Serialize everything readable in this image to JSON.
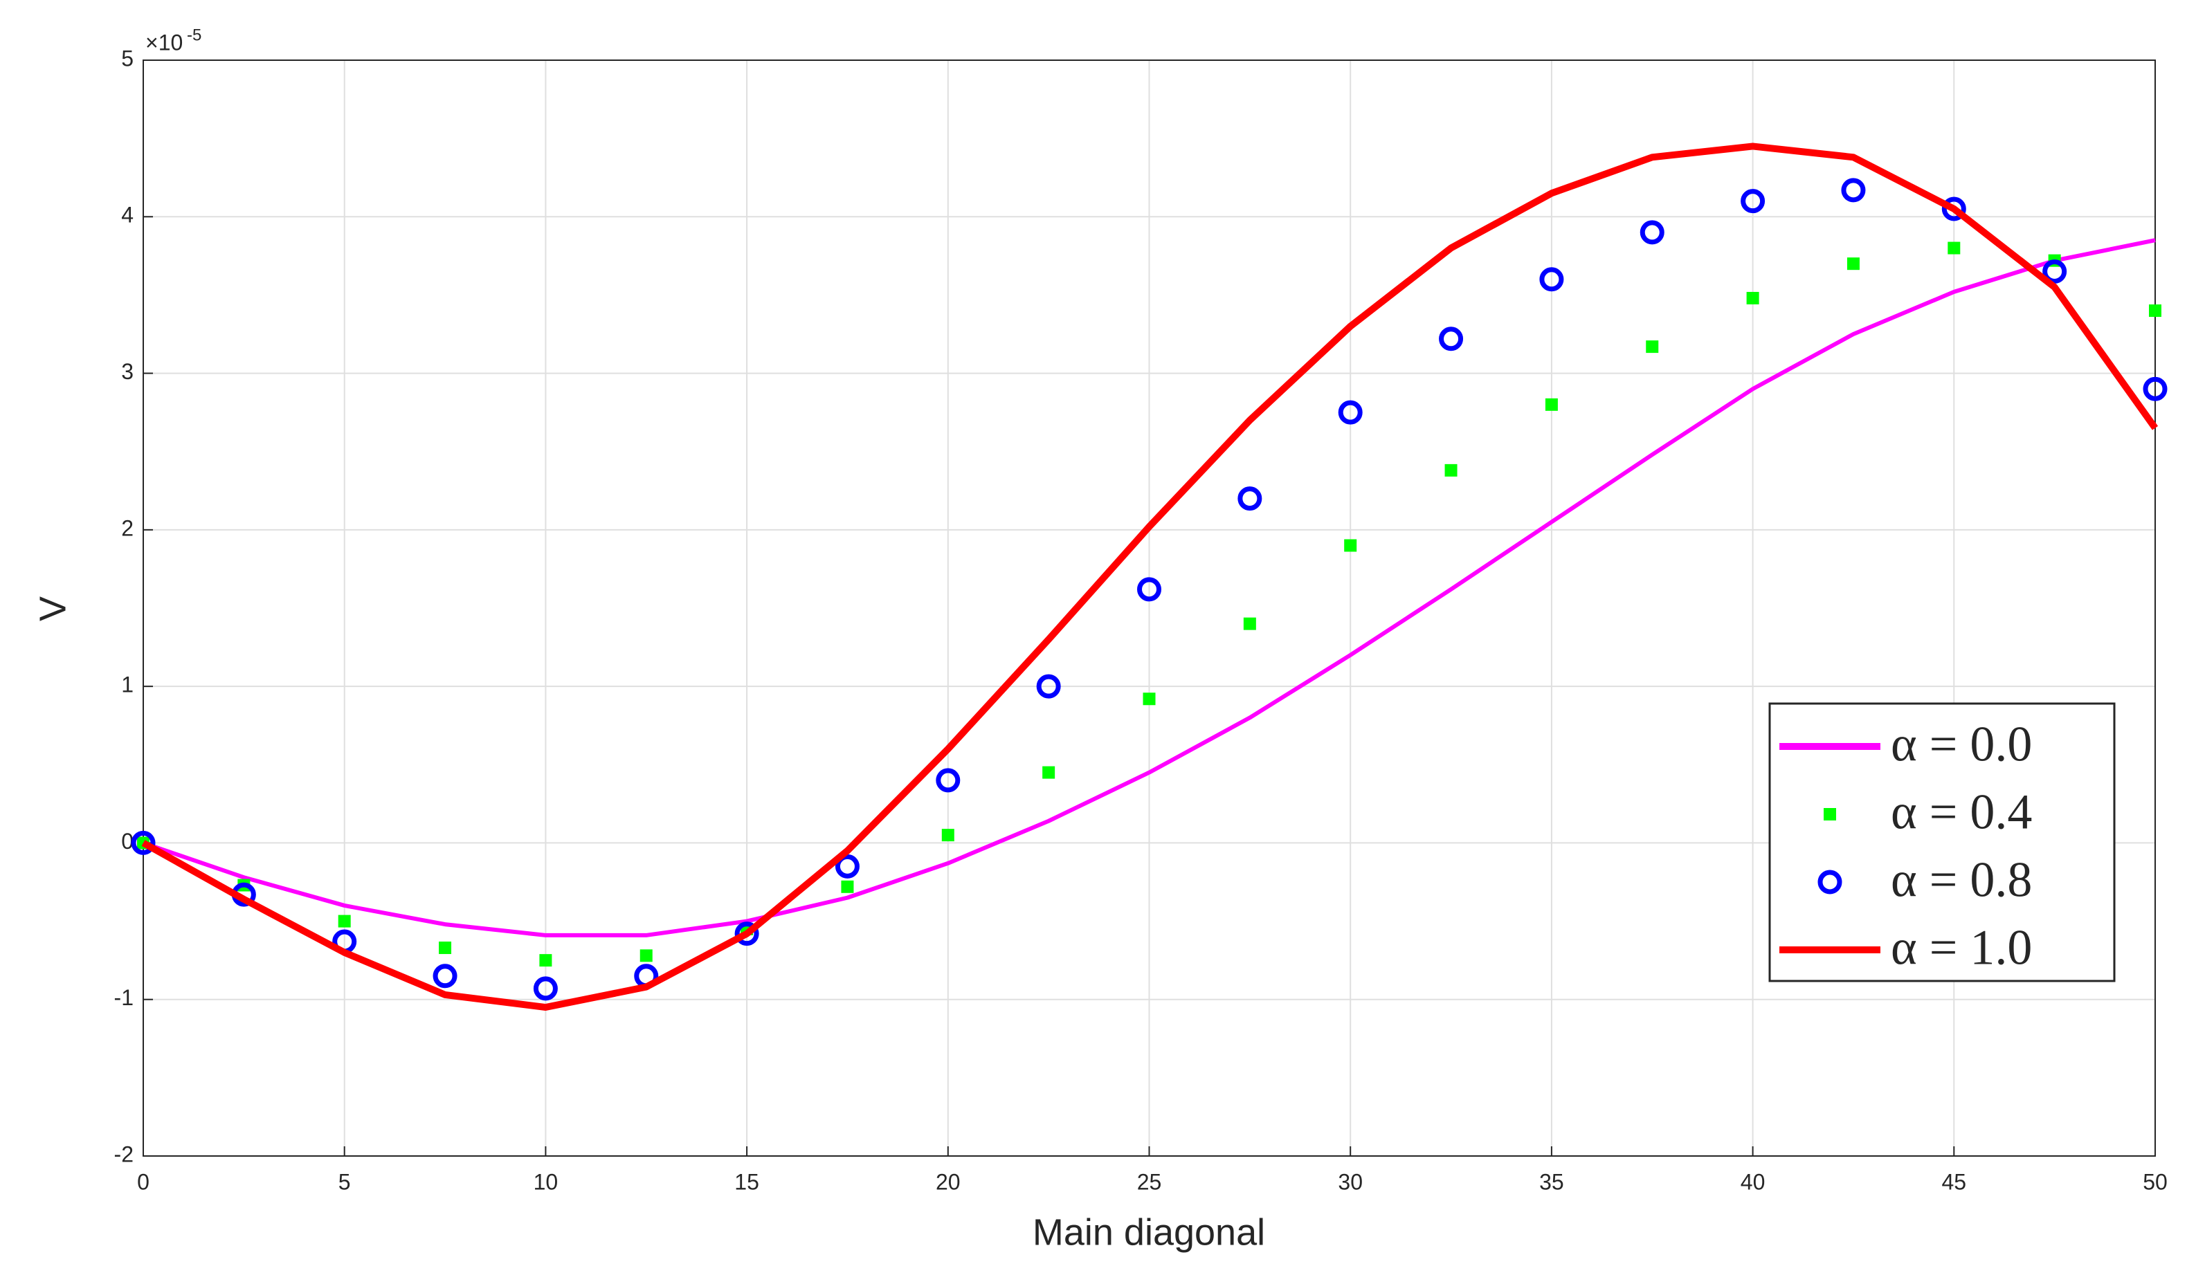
{
  "chart_data": {
    "type": "line",
    "xlabel": "Main diagonal",
    "ylabel": "V",
    "y_multiplier": {
      "base": "×10",
      "exponent": "-5"
    },
    "x": [
      0,
      2.5,
      5,
      7.5,
      10,
      12.5,
      15,
      17.5,
      20,
      22.5,
      25,
      27.5,
      30,
      32.5,
      35,
      37.5,
      40,
      42.5,
      45,
      47.5,
      50
    ],
    "series": [
      {
        "name": "α = 0.0",
        "color": "#ff00ff",
        "marker": "none",
        "values": [
          0,
          -0.22,
          -0.4,
          -0.52,
          -0.59,
          -0.59,
          -0.5,
          -0.35,
          -0.13,
          0.14,
          0.45,
          0.8,
          1.2,
          1.62,
          2.05,
          2.48,
          2.9,
          3.25,
          3.52,
          3.72,
          3.85
        ]
      },
      {
        "name": "α = 0.4",
        "color": "#00ff00",
        "marker": "square",
        "values": [
          0,
          -0.27,
          -0.5,
          -0.67,
          -0.75,
          -0.72,
          -0.55,
          -0.28,
          0.05,
          0.45,
          0.92,
          1.4,
          1.9,
          2.38,
          2.8,
          3.17,
          3.48,
          3.7,
          3.8,
          3.72,
          3.4
        ]
      },
      {
        "name": "α = 0.8",
        "color": "#0000ff",
        "marker": "circle",
        "values": [
          0,
          -0.33,
          -0.63,
          -0.85,
          -0.93,
          -0.85,
          -0.58,
          -0.15,
          0.4,
          1.0,
          1.62,
          2.2,
          2.75,
          3.22,
          3.6,
          3.9,
          4.1,
          4.17,
          4.05,
          3.65,
          2.9
        ]
      },
      {
        "name": "α = 1.0",
        "color": "#ff0000",
        "marker": "none",
        "values": [
          0,
          -0.36,
          -0.7,
          -0.97,
          -1.05,
          -0.92,
          -0.58,
          -0.05,
          0.6,
          1.3,
          2.02,
          2.7,
          3.3,
          3.8,
          4.15,
          4.38,
          4.45,
          4.38,
          4.05,
          3.55,
          2.65
        ]
      }
    ],
    "xlim": [
      0,
      50
    ],
    "xticks": [
      0,
      5,
      10,
      15,
      20,
      25,
      30,
      35,
      40,
      45,
      50
    ],
    "ylim": [
      -2,
      5
    ],
    "yticks": [
      -2,
      -1,
      0,
      1,
      2,
      3,
      4,
      5
    ],
    "grid": true,
    "legend_loc": "right"
  }
}
